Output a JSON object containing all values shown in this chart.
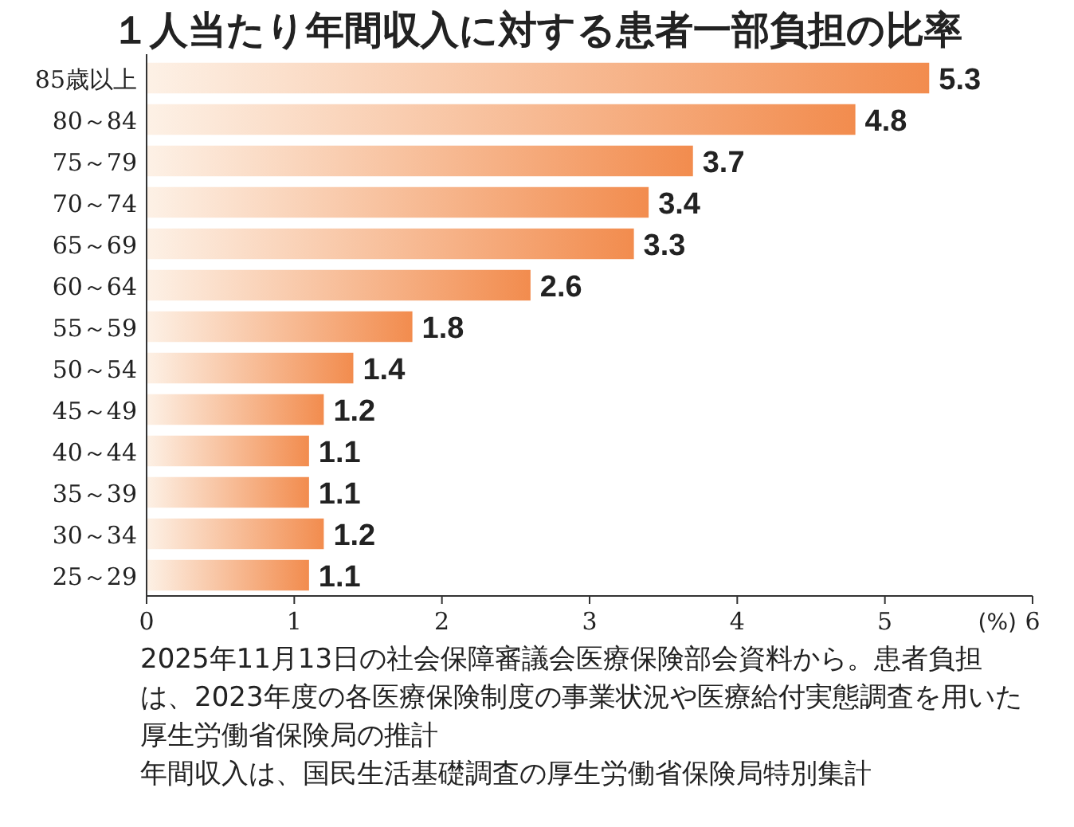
{
  "chart_data": {
    "type": "bar",
    "orientation": "horizontal",
    "title": "１人当たり年間収入に対する患者一部負担の比率",
    "categories": [
      "85歳以上",
      "80～84",
      "75～79",
      "70～74",
      "65～69",
      "60～64",
      "55～59",
      "50～54",
      "45～49",
      "40～44",
      "35～39",
      "30～34",
      "25～29"
    ],
    "values": [
      5.3,
      4.8,
      3.7,
      3.4,
      3.3,
      2.6,
      1.8,
      1.4,
      1.2,
      1.1,
      1.1,
      1.2,
      1.1
    ],
    "color": "#f28c4e",
    "data_labels": true,
    "xlabel": "(%)",
    "xlim": [
      0,
      6
    ],
    "xticks": [
      0,
      1,
      2,
      3,
      4,
      5,
      6
    ],
    "grid": false,
    "annotations": [
      "2025年11月13日の社会保障審議会医療保険部会資料から。患者負担は、2023年度の各医療保険制度の事業状況や医療給付実態調査を用いた厚生労働省保険局の推計",
      "年間収入は、国民生活基礎調査の厚生労働省保険局特別集計"
    ]
  }
}
